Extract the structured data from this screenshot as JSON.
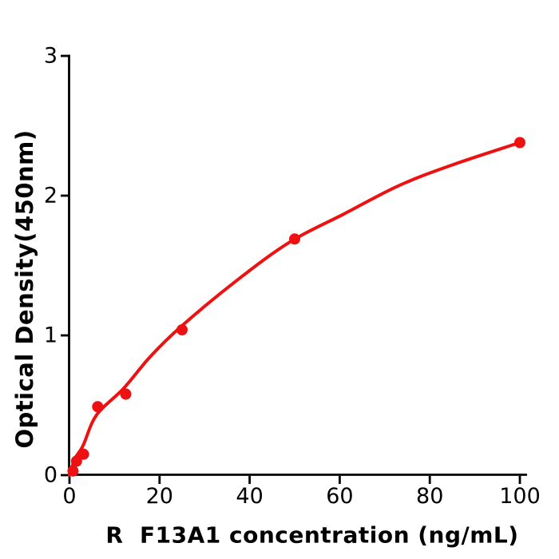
{
  "page": {
    "background": "#ffffff"
  },
  "chart_data": {
    "type": "scatter",
    "title": "",
    "xlabel": "R  F13A1 concentration (ng/mL)",
    "ylabel": "Optical Density(450nm)",
    "x_ticks": [
      0,
      20,
      40,
      60,
      80,
      100
    ],
    "y_ticks": [
      0,
      1,
      2,
      3
    ],
    "xlim": [
      0,
      101.5
    ],
    "ylim": [
      0,
      3
    ],
    "grid": false,
    "legend": null,
    "points": [
      {
        "x": 0.78,
        "y": 0.03
      },
      {
        "x": 1.56,
        "y": 0.1
      },
      {
        "x": 3.125,
        "y": 0.15
      },
      {
        "x": 6.25,
        "y": 0.49
      },
      {
        "x": 12.5,
        "y": 0.58
      },
      {
        "x": 25,
        "y": 1.04
      },
      {
        "x": 50,
        "y": 1.69
      },
      {
        "x": 100,
        "y": 2.38
      }
    ],
    "fit_curve": [
      [
        0,
        0
      ],
      [
        1.25,
        0.12
      ],
      [
        3,
        0.21
      ],
      [
        6,
        0.43
      ],
      [
        12,
        0.62
      ],
      [
        18,
        0.85
      ],
      [
        25,
        1.07
      ],
      [
        37,
        1.39
      ],
      [
        49,
        1.67
      ],
      [
        61,
        1.87
      ],
      [
        73,
        2.07
      ],
      [
        85,
        2.22
      ],
      [
        100,
        2.38
      ]
    ],
    "point_color": "#ee1111",
    "curve_color": "#ee1111",
    "axis_color": "#000000"
  }
}
